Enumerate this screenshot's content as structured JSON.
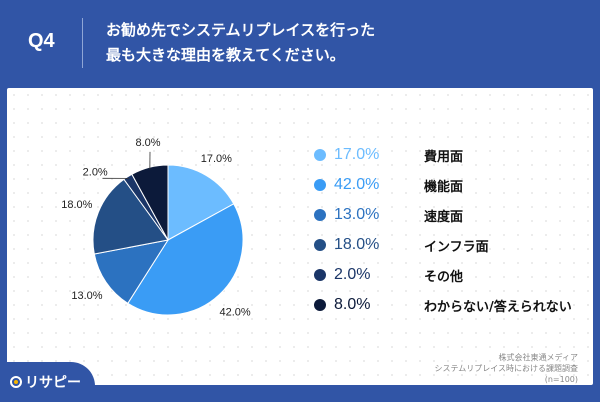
{
  "header": {
    "question": "Q4",
    "title_line1": "お勧め先でシステムリプレイスを行った",
    "title_line2": "最も大きな理由を教えてください。"
  },
  "colors": {
    "background": "#3155a6"
  },
  "chart_data": {
    "type": "pie",
    "categories": [
      "費用面",
      "機能面",
      "速度面",
      "インフラ面",
      "その他",
      "わからない/答えられない"
    ],
    "values": [
      17.0,
      42.0,
      13.0,
      18.0,
      2.0,
      8.0
    ],
    "labels": [
      "17.0%",
      "42.0%",
      "13.0%",
      "18.0%",
      "2.0%",
      "8.0%"
    ],
    "colors": [
      "#6cbcff",
      "#3a9cf5",
      "#2c72c0",
      "#244f86",
      "#1a3567",
      "#0c1a3a"
    ],
    "legend": "right",
    "start": "top, clockwise"
  },
  "source": {
    "line1": "株式会社東通メディア",
    "line2": "システムリプレイス時における課題調査",
    "line3": "(n=100)"
  },
  "logo": {
    "text": "リサピー"
  }
}
